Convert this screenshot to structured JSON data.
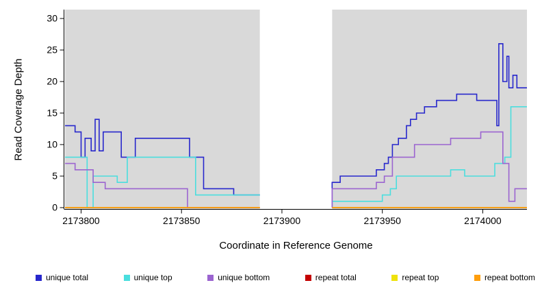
{
  "chart_data": {
    "type": "line",
    "step": true,
    "title": "",
    "xlabel": "Coordinate in Reference Genome",
    "ylabel": "Read Coverage Depth",
    "xlim": [
      2173792,
      2174022
    ],
    "ylim": [
      0,
      31.4
    ],
    "xticks": [
      2173800,
      2173850,
      2173900,
      2173950,
      2174000
    ],
    "yticks": [
      0,
      5,
      10,
      15,
      20,
      25,
      30
    ],
    "grid": false,
    "plot_background": "#d9d9d9",
    "no_data_band": [
      2173889,
      2173925
    ],
    "legend_position": "bottom",
    "series": [
      {
        "name": "unique total",
        "color": "#2727cc",
        "segments": [
          {
            "points": [
              [
                2173792,
                13
              ],
              [
                2173797,
                12
              ],
              [
                2173800,
                8
              ],
              [
                2173802,
                11
              ],
              [
                2173805,
                9
              ],
              [
                2173807,
                14
              ],
              [
                2173809,
                9
              ],
              [
                2173811,
                12
              ],
              [
                2173820,
                8
              ],
              [
                2173827,
                11
              ],
              [
                2173854,
                8
              ],
              [
                2173861,
                3
              ],
              [
                2173876,
                2
              ]
            ],
            "end": 2173889
          },
          {
            "points": [
              [
                2173925,
                0
              ],
              [
                2173925,
                4
              ],
              [
                2173929,
                5
              ],
              [
                2173947,
                6
              ],
              [
                2173951,
                7
              ],
              [
                2173953,
                8
              ],
              [
                2173955,
                10
              ],
              [
                2173958,
                11
              ],
              [
                2173962,
                13
              ],
              [
                2173964,
                14
              ],
              [
                2173967,
                15
              ],
              [
                2173971,
                16
              ],
              [
                2173977,
                17
              ],
              [
                2173987,
                18
              ],
              [
                2173997,
                17
              ],
              [
                2174007,
                13
              ],
              [
                2174008,
                26
              ],
              [
                2174010,
                20
              ],
              [
                2174012,
                24
              ],
              [
                2174013,
                19
              ],
              [
                2174015,
                21
              ],
              [
                2174017,
                19
              ]
            ],
            "end": 2174022
          }
        ]
      },
      {
        "name": "unique top",
        "color": "#4adede",
        "segments": [
          {
            "points": [
              [
                2173792,
                8
              ],
              [
                2173803,
                0
              ],
              [
                2173806,
                5
              ],
              [
                2173818,
                4
              ],
              [
                2173823,
                8
              ],
              [
                2173857,
                2
              ]
            ],
            "end": 2173889
          },
          {
            "points": [
              [
                2173925,
                0
              ],
              [
                2173925,
                1
              ],
              [
                2173950,
                2
              ],
              [
                2173954,
                3
              ],
              [
                2173957,
                5
              ],
              [
                2173984,
                6
              ],
              [
                2173991,
                5
              ],
              [
                2174006,
                7
              ],
              [
                2174011,
                8
              ],
              [
                2174014,
                16
              ]
            ],
            "end": 2174022
          }
        ]
      },
      {
        "name": "unique bottom",
        "color": "#9b64d0",
        "segments": [
          {
            "points": [
              [
                2173792,
                7
              ],
              [
                2173797,
                6
              ],
              [
                2173806,
                4
              ],
              [
                2173812,
                3
              ],
              [
                2173853,
                0
              ]
            ],
            "end": 2173889
          },
          {
            "points": [
              [
                2173925,
                0
              ],
              [
                2173925,
                3
              ],
              [
                2173947,
                4
              ],
              [
                2173951,
                5
              ],
              [
                2173955,
                8
              ],
              [
                2173966,
                10
              ],
              [
                2173984,
                11
              ],
              [
                2173999,
                12
              ],
              [
                2174010,
                7
              ],
              [
                2174013,
                1
              ],
              [
                2174016,
                3
              ]
            ],
            "end": 2174022
          }
        ]
      },
      {
        "name": "repeat total",
        "color": "#c40000",
        "segments": [
          {
            "points": [
              [
                2173792,
                0
              ]
            ],
            "end": 2173889
          },
          {
            "points": [
              [
                2173925,
                0
              ]
            ],
            "end": 2174022
          }
        ]
      },
      {
        "name": "repeat top",
        "color": "#efe20c",
        "segments": [
          {
            "points": [
              [
                2173792,
                0
              ]
            ],
            "end": 2173889
          },
          {
            "points": [
              [
                2173925,
                0
              ]
            ],
            "end": 2174022
          }
        ]
      },
      {
        "name": "repeat bottom",
        "color": "#ff9e0c",
        "segments": [
          {
            "points": [
              [
                2173792,
                0
              ]
            ],
            "end": 2173889
          },
          {
            "points": [
              [
                2173925,
                0
              ]
            ],
            "end": 2174022
          }
        ]
      }
    ],
    "legend": [
      {
        "label": "unique total",
        "color": "#2727cc"
      },
      {
        "label": "unique top",
        "color": "#4adede"
      },
      {
        "label": "unique bottom",
        "color": "#9b64d0"
      },
      {
        "label": "repeat total",
        "color": "#c40000"
      },
      {
        "label": "repeat top",
        "color": "#efe20c"
      },
      {
        "label": "repeat bottom",
        "color": "#ff9e0c"
      }
    ]
  }
}
